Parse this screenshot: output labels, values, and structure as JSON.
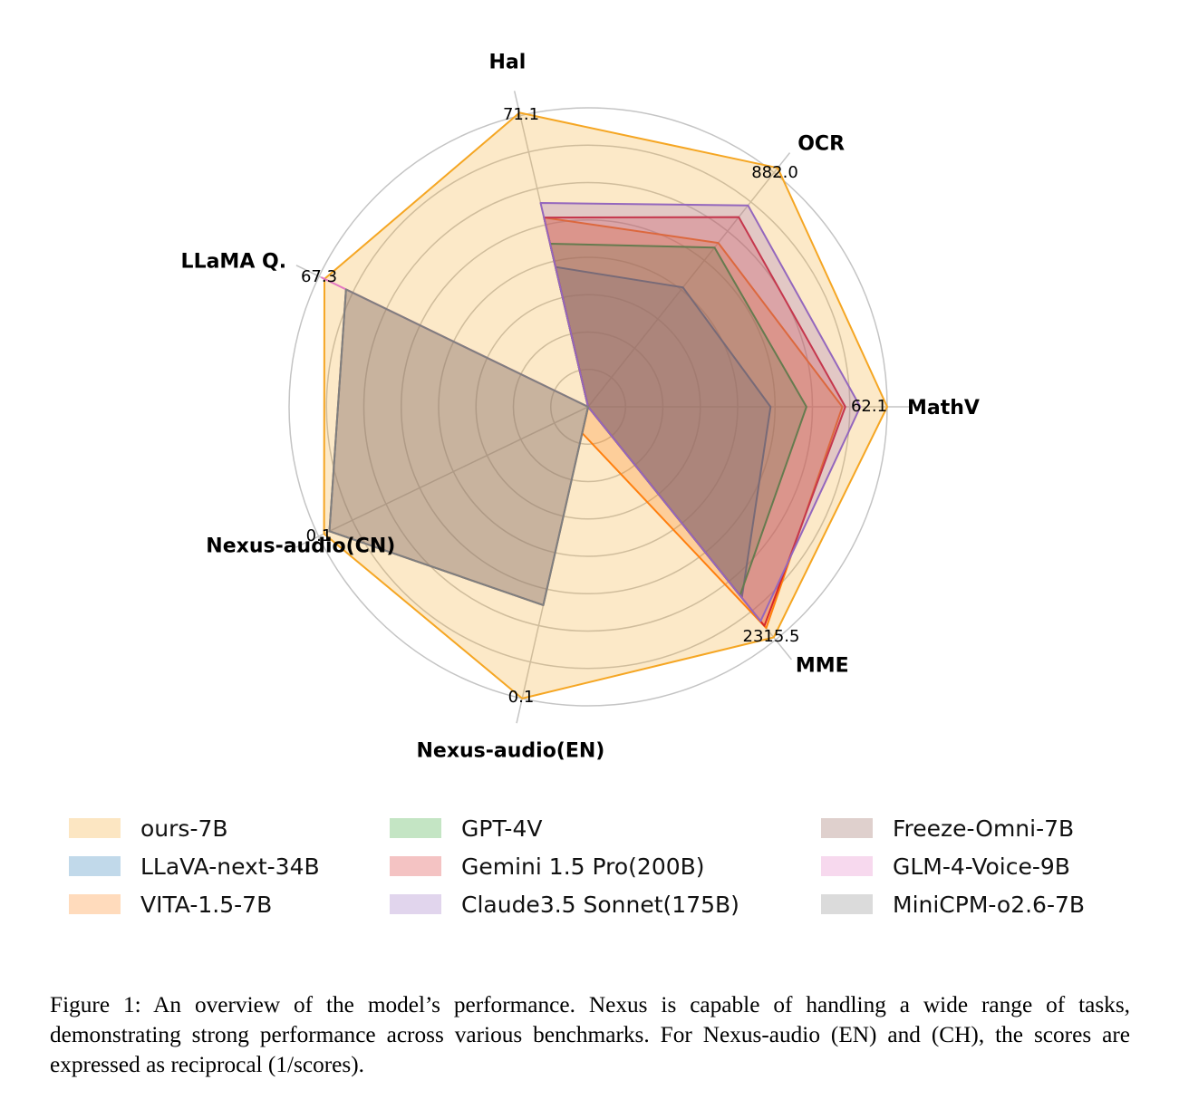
{
  "chart_data": {
    "type": "radar",
    "axes": [
      "MathV",
      "OCR",
      "Hal",
      "LLaMA Q.",
      "Nexus-audio(CN)",
      "Nexus-audio(EN)",
      "MME"
    ],
    "axis_max_labels": [
      "62.1",
      "882.0",
      "71.1",
      "67.3",
      "0.1",
      "0.1",
      "2315.5"
    ],
    "note": "values are fraction of the outer ring labeled on each axis",
    "series": [
      {
        "name": "ours-7B",
        "color": "#f5a623",
        "values": [
          1.0,
          1.02,
          1.01,
          0.98,
          0.98,
          1.0,
          0.99
        ]
      },
      {
        "name": "LLaVA-next-34B",
        "color": "#1f77b4",
        "values": [
          0.61,
          0.51,
          0.48,
          0.0,
          0.0,
          0.0,
          0.82
        ]
      },
      {
        "name": "VITA-1.5-7B",
        "color": "#ff7f0e",
        "values": [
          0.85,
          0.7,
          0.65,
          0.0,
          0.0,
          0.09,
          0.95
        ]
      },
      {
        "name": "GPT-4V",
        "color": "#2ca02c",
        "values": [
          0.73,
          0.68,
          0.56,
          0.0,
          0.0,
          0.0,
          0.81
        ]
      },
      {
        "name": "Gemini 1.5 Pro(200B)",
        "color": "#d62728",
        "values": [
          0.86,
          0.81,
          0.65,
          0.0,
          0.0,
          0.0,
          0.94
        ]
      },
      {
        "name": "Claude3.5 Sonnet(175B)",
        "color": "#9467bd",
        "values": [
          0.91,
          0.86,
          0.7,
          0.0,
          0.0,
          0.0,
          0.92
        ]
      },
      {
        "name": "Freeze-Omni-7B",
        "color": "#8c564b",
        "values": [
          0.0,
          0.0,
          0.0,
          0.9,
          0.96,
          0.68,
          0.0
        ]
      },
      {
        "name": "GLM-4-Voice-9B",
        "color": "#e377c2",
        "values": [
          0.0,
          0.0,
          0.0,
          0.99,
          0.0,
          0.0,
          0.0
        ]
      },
      {
        "name": "MiniCPM-o2.6-7B",
        "color": "#7f7f7f",
        "values": [
          0.0,
          0.0,
          0.0,
          0.9,
          0.96,
          0.68,
          0.0
        ]
      }
    ],
    "grid": true,
    "legend_position": "bottom"
  },
  "caption": "Figure 1: An overview of the model’s performance. Nexus is capable of handling a wide range of tasks, demonstrating strong performance across various benchmarks. For Nexus-audio (EN) and (CH), the scores are expressed as reciprocal (1/scores)."
}
